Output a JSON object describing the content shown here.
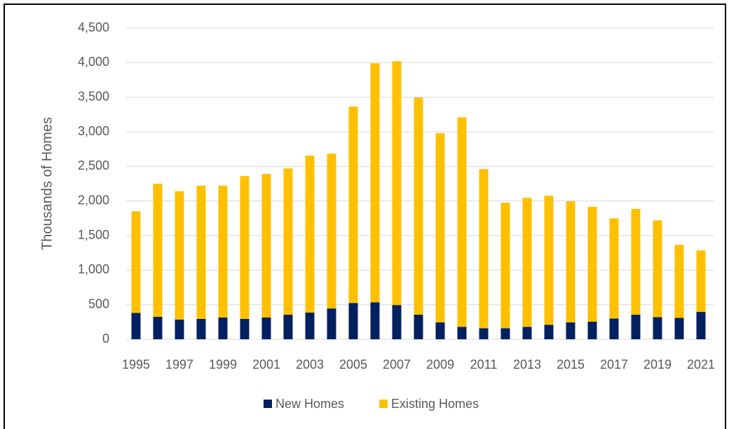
{
  "chart_data": {
    "type": "stacked_bar",
    "ylabel": "Thousands of Homes",
    "categories": [
      "1995",
      null,
      "1997",
      null,
      "1999",
      null,
      "2001",
      null,
      "2003",
      null,
      "2005",
      null,
      "2007",
      null,
      "2009",
      null,
      "2011",
      null,
      "2013",
      null,
      "2015",
      null,
      "2017",
      null,
      "2019",
      null,
      "2021"
    ],
    "series": [
      {
        "name": "New Homes",
        "color": "#002060",
        "values": [
          380,
          325,
          285,
          295,
          315,
          295,
          315,
          355,
          385,
          445,
          525,
          535,
          495,
          355,
          245,
          180,
          160,
          160,
          180,
          210,
          245,
          255,
          300,
          355,
          320,
          310,
          395
        ]
      },
      {
        "name": "Existing Homes",
        "color": "#ffc000",
        "values": [
          1470,
          1925,
          1855,
          1925,
          1905,
          2065,
          2075,
          2115,
          2270,
          2240,
          2840,
          3455,
          3525,
          3140,
          2735,
          3030,
          2300,
          1815,
          1865,
          1865,
          1750,
          1660,
          1450,
          1530,
          1400,
          1055,
          890
        ]
      }
    ],
    "ylim": [
      0,
      4500
    ],
    "yticks": [
      0,
      500,
      {
        "value": 1000,
        "label": "1,000"
      },
      {
        "value": 1500,
        "label": "1,500"
      },
      {
        "value": 2000,
        "label": "2,000"
      },
      {
        "value": 2500,
        "label": "2,500"
      },
      {
        "value": 3000,
        "label": "3,000"
      },
      {
        "value": 3500,
        "label": "3,500"
      },
      {
        "value": 4000,
        "label": "4,000"
      },
      {
        "value": 4500,
        "label": "4,500"
      }
    ],
    "grid": true,
    "legend": "bottom"
  }
}
